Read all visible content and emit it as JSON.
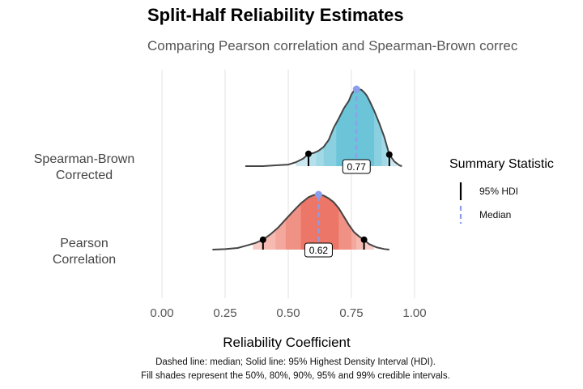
{
  "title": "Split-Half Reliability Estimates",
  "subtitle": "Comparing Pearson correlation and Spearman-Brown correc",
  "caption_line1": "Dashed line: median; Solid line: 95% Highest Density Interval (HDI).",
  "caption_line2": "Fill shades represent the 50%, 80%, 90%, 95% and 99% credible intervals.",
  "legend": {
    "title": "Summary Statistic",
    "items": [
      {
        "label": "95% HDI",
        "style": "solid",
        "color": "#000000"
      },
      {
        "label": "Median",
        "style": "dashed",
        "color": "#8C9EEB"
      }
    ]
  },
  "chart_data": {
    "type": "density-ridgeline",
    "xlabel": "Reliability Coefficient",
    "xlim": [
      -0.03,
      1.03
    ],
    "x_ticks": [
      0.0,
      0.25,
      0.5,
      0.75,
      1.0
    ],
    "x_tick_labels": [
      "0.00",
      "0.25",
      "0.50",
      "0.75",
      "1.00"
    ],
    "grid": true,
    "legend_position": "right",
    "series": [
      {
        "name": "Spearman-Brown Corrected",
        "label_line1": "Spearman-Brown",
        "label_line2": "Corrected",
        "color_dark": "#6CC4D9",
        "color_light": "#E4F2F8",
        "median": 0.77,
        "median_label": "0.77",
        "hdi95": [
          0.58,
          0.9
        ],
        "intervals": {
          "50": [
            0.69,
            0.84
          ],
          "80": [
            0.64,
            0.87
          ],
          "90": [
            0.61,
            0.89
          ],
          "95": [
            0.58,
            0.9
          ],
          "99": [
            0.53,
            0.93
          ]
        },
        "density": {
          "x": [
            0.33,
            0.4,
            0.45,
            0.5,
            0.53,
            0.56,
            0.58,
            0.6,
            0.62,
            0.64,
            0.66,
            0.68,
            0.7,
            0.72,
            0.74,
            0.75,
            0.76,
            0.77,
            0.78,
            0.79,
            0.8,
            0.81,
            0.82,
            0.84,
            0.86,
            0.88,
            0.9,
            0.92,
            0.94,
            0.95
          ],
          "y": [
            0.0,
            0.0,
            0.01,
            0.02,
            0.05,
            0.1,
            0.16,
            0.17,
            0.2,
            0.25,
            0.34,
            0.5,
            0.62,
            0.75,
            0.85,
            0.93,
            0.98,
            1.0,
            1.0,
            0.99,
            0.96,
            0.92,
            0.86,
            0.72,
            0.56,
            0.38,
            0.15,
            0.06,
            0.01,
            0.0
          ]
        }
      },
      {
        "name": "Pearson Correlation",
        "label_line1": "Pearson",
        "label_line2": "Correlation",
        "color_dark": "#EC7667",
        "color_light": "#FCE3DF",
        "median": 0.62,
        "median_label": "0.62",
        "hdi95": [
          0.4,
          0.8
        ],
        "intervals": {
          "50": [
            0.55,
            0.7
          ],
          "80": [
            0.49,
            0.75
          ],
          "90": [
            0.45,
            0.77
          ],
          "95": [
            0.4,
            0.8
          ],
          "99": [
            0.36,
            0.84
          ]
        },
        "density": {
          "x": [
            0.2,
            0.25,
            0.3,
            0.34,
            0.37,
            0.4,
            0.43,
            0.46,
            0.49,
            0.52,
            0.55,
            0.58,
            0.6,
            0.62,
            0.64,
            0.66,
            0.68,
            0.7,
            0.72,
            0.74,
            0.76,
            0.78,
            0.8,
            0.82,
            0.85,
            0.88,
            0.9
          ],
          "y": [
            0.0,
            0.01,
            0.03,
            0.08,
            0.12,
            0.18,
            0.28,
            0.4,
            0.55,
            0.7,
            0.84,
            0.95,
            0.99,
            1.0,
            0.98,
            0.93,
            0.86,
            0.75,
            0.6,
            0.45,
            0.32,
            0.24,
            0.18,
            0.1,
            0.04,
            0.01,
            0.0
          ]
        }
      }
    ]
  }
}
